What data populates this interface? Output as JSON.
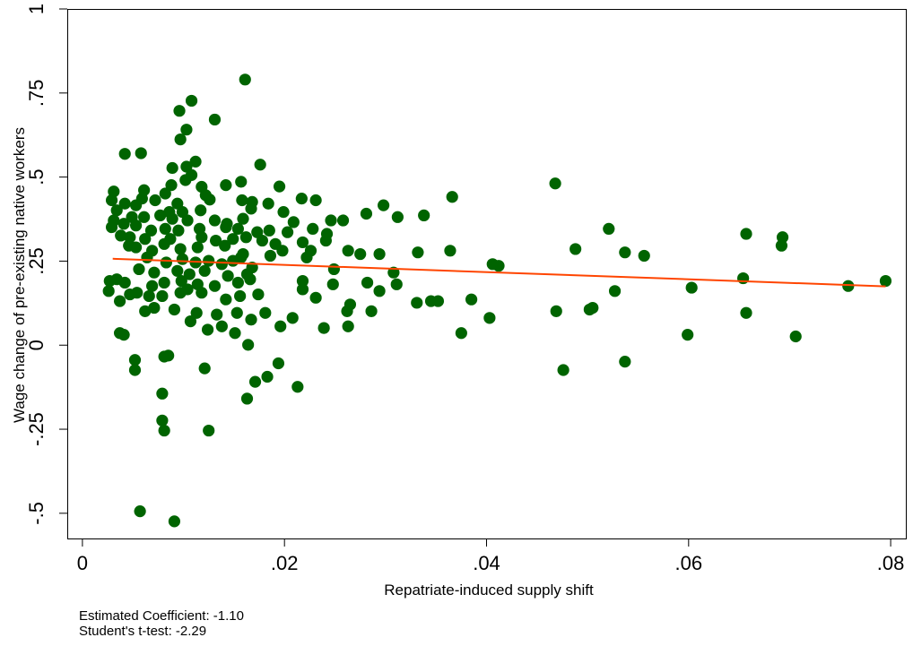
{
  "chart_data": {
    "type": "scatter",
    "title": "",
    "xlabel": "Repatriate-induced supply shift",
    "ylabel": "Wage change of pre-existing native workers",
    "xlim": [
      -0.0015,
      0.0815
    ],
    "ylim": [
      -0.575,
      1.0
    ],
    "xticks": [
      0,
      0.02,
      0.04,
      0.06,
      0.08
    ],
    "xtick_labels": [
      "0",
      ".02",
      ".04",
      ".06",
      ".08"
    ],
    "yticks": [
      -0.5,
      -0.25,
      0,
      0.25,
      0.5,
      0.75,
      1
    ],
    "ytick_labels": [
      "-.5",
      "-.25",
      "0",
      ".25",
      ".5",
      ".75",
      "1"
    ],
    "grid": false,
    "colors": {
      "points": "#006400",
      "fit_line": "#ff4500"
    },
    "fit_line": {
      "x": [
        0.003,
        0.0795
      ],
      "y": [
        0.257,
        0.175
      ]
    },
    "points": [
      [
        0.0161,
        0.79
      ],
      [
        0.0108,
        0.727
      ],
      [
        0.0096,
        0.697
      ],
      [
        0.0131,
        0.671
      ],
      [
        0.0103,
        0.641
      ],
      [
        0.0097,
        0.612
      ],
      [
        0.0042,
        0.569
      ],
      [
        0.0058,
        0.571
      ],
      [
        0.0112,
        0.546
      ],
      [
        0.0089,
        0.527
      ],
      [
        0.0103,
        0.531
      ],
      [
        0.0176,
        0.537
      ],
      [
        0.0108,
        0.506
      ],
      [
        0.0157,
        0.486
      ],
      [
        0.0102,
        0.491
      ],
      [
        0.0088,
        0.476
      ],
      [
        0.0118,
        0.471
      ],
      [
        0.0142,
        0.476
      ],
      [
        0.0195,
        0.472
      ],
      [
        0.0031,
        0.457
      ],
      [
        0.0061,
        0.461
      ],
      [
        0.0059,
        0.436
      ],
      [
        0.0072,
        0.431
      ],
      [
        0.0082,
        0.451
      ],
      [
        0.0029,
        0.431
      ],
      [
        0.0122,
        0.446
      ],
      [
        0.0126,
        0.433
      ],
      [
        0.0158,
        0.431
      ],
      [
        0.0168,
        0.426
      ],
      [
        0.0217,
        0.436
      ],
      [
        0.0231,
        0.431
      ],
      [
        0.0366,
        0.441
      ],
      [
        0.0053,
        0.416
      ],
      [
        0.0042,
        0.421
      ],
      [
        0.0094,
        0.421
      ],
      [
        0.0184,
        0.421
      ],
      [
        0.0298,
        0.416
      ],
      [
        0.0034,
        0.401
      ],
      [
        0.0086,
        0.396
      ],
      [
        0.0099,
        0.396
      ],
      [
        0.0117,
        0.401
      ],
      [
        0.0167,
        0.406
      ],
      [
        0.0199,
        0.396
      ],
      [
        0.0281,
        0.391
      ],
      [
        0.0468,
        0.481
      ],
      [
        0.0031,
        0.371
      ],
      [
        0.0061,
        0.381
      ],
      [
        0.0049,
        0.381
      ],
      [
        0.0077,
        0.386
      ],
      [
        0.0089,
        0.376
      ],
      [
        0.0104,
        0.371
      ],
      [
        0.0131,
        0.371
      ],
      [
        0.0143,
        0.361
      ],
      [
        0.0159,
        0.376
      ],
      [
        0.0209,
        0.366
      ],
      [
        0.0246,
        0.371
      ],
      [
        0.0258,
        0.371
      ],
      [
        0.0312,
        0.381
      ],
      [
        0.0338,
        0.386
      ],
      [
        0.0029,
        0.351
      ],
      [
        0.0041,
        0.361
      ],
      [
        0.0053,
        0.356
      ],
      [
        0.0068,
        0.341
      ],
      [
        0.0082,
        0.346
      ],
      [
        0.0095,
        0.341
      ],
      [
        0.0116,
        0.346
      ],
      [
        0.0142,
        0.351
      ],
      [
        0.0154,
        0.346
      ],
      [
        0.0173,
        0.336
      ],
      [
        0.0185,
        0.341
      ],
      [
        0.0203,
        0.336
      ],
      [
        0.0228,
        0.346
      ],
      [
        0.0242,
        0.331
      ],
      [
        0.0038,
        0.326
      ],
      [
        0.0047,
        0.321
      ],
      [
        0.0062,
        0.316
      ],
      [
        0.0087,
        0.316
      ],
      [
        0.0118,
        0.321
      ],
      [
        0.0132,
        0.311
      ],
      [
        0.0149,
        0.316
      ],
      [
        0.0162,
        0.321
      ],
      [
        0.0178,
        0.311
      ],
      [
        0.0191,
        0.301
      ],
      [
        0.0218,
        0.306
      ],
      [
        0.0241,
        0.311
      ],
      [
        0.0263,
        0.281
      ],
      [
        0.0275,
        0.271
      ],
      [
        0.0046,
        0.296
      ],
      [
        0.0053,
        0.291
      ],
      [
        0.0069,
        0.281
      ],
      [
        0.0081,
        0.301
      ],
      [
        0.0097,
        0.286
      ],
      [
        0.0114,
        0.291
      ],
      [
        0.0141,
        0.296
      ],
      [
        0.0159,
        0.271
      ],
      [
        0.0186,
        0.266
      ],
      [
        0.0198,
        0.281
      ],
      [
        0.0226,
        0.281
      ],
      [
        0.0294,
        0.271
      ],
      [
        0.0332,
        0.276
      ],
      [
        0.0364,
        0.281
      ],
      [
        0.0406,
        0.241
      ],
      [
        0.0412,
        0.236
      ],
      [
        0.0488,
        0.286
      ],
      [
        0.0521,
        0.346
      ],
      [
        0.0537,
        0.276
      ],
      [
        0.0556,
        0.266
      ],
      [
        0.0657,
        0.331
      ],
      [
        0.0693,
        0.321
      ],
      [
        0.0692,
        0.296
      ],
      [
        0.0064,
        0.261
      ],
      [
        0.0083,
        0.246
      ],
      [
        0.0099,
        0.256
      ],
      [
        0.0112,
        0.246
      ],
      [
        0.0125,
        0.251
      ],
      [
        0.0138,
        0.241
      ],
      [
        0.0149,
        0.251
      ],
      [
        0.0157,
        0.261
      ],
      [
        0.0168,
        0.231
      ],
      [
        0.0222,
        0.261
      ],
      [
        0.0249,
        0.226
      ],
      [
        0.0308,
        0.216
      ],
      [
        0.0056,
        0.226
      ],
      [
        0.0071,
        0.216
      ],
      [
        0.0094,
        0.221
      ],
      [
        0.0106,
        0.211
      ],
      [
        0.0121,
        0.221
      ],
      [
        0.0144,
        0.206
      ],
      [
        0.0163,
        0.211
      ],
      [
        0.0027,
        0.191
      ],
      [
        0.0034,
        0.196
      ],
      [
        0.0042,
        0.186
      ],
      [
        0.0069,
        0.176
      ],
      [
        0.0081,
        0.186
      ],
      [
        0.0098,
        0.191
      ],
      [
        0.0114,
        0.181
      ],
      [
        0.0131,
        0.176
      ],
      [
        0.0154,
        0.186
      ],
      [
        0.0166,
        0.196
      ],
      [
        0.0218,
        0.191
      ],
      [
        0.0248,
        0.181
      ],
      [
        0.0282,
        0.186
      ],
      [
        0.0311,
        0.181
      ],
      [
        0.0026,
        0.161
      ],
      [
        0.0047,
        0.151
      ],
      [
        0.0054,
        0.156
      ],
      [
        0.0066,
        0.146
      ],
      [
        0.0079,
        0.146
      ],
      [
        0.0097,
        0.156
      ],
      [
        0.0104,
        0.166
      ],
      [
        0.0118,
        0.156
      ],
      [
        0.0142,
        0.136
      ],
      [
        0.0156,
        0.146
      ],
      [
        0.0174,
        0.151
      ],
      [
        0.0218,
        0.166
      ],
      [
        0.0231,
        0.141
      ],
      [
        0.0265,
        0.121
      ],
      [
        0.0294,
        0.161
      ],
      [
        0.0331,
        0.126
      ],
      [
        0.0345,
        0.131
      ],
      [
        0.0352,
        0.131
      ],
      [
        0.0385,
        0.136
      ],
      [
        0.0469,
        0.101
      ],
      [
        0.0502,
        0.106
      ],
      [
        0.0505,
        0.111
      ],
      [
        0.0527,
        0.161
      ],
      [
        0.0603,
        0.171
      ],
      [
        0.0654,
        0.199
      ],
      [
        0.0657,
        0.096
      ],
      [
        0.0758,
        0.176
      ],
      [
        0.0795,
        0.191
      ],
      [
        0.0037,
        0.131
      ],
      [
        0.0062,
        0.101
      ],
      [
        0.0071,
        0.111
      ],
      [
        0.0091,
        0.106
      ],
      [
        0.0113,
        0.096
      ],
      [
        0.0133,
        0.091
      ],
      [
        0.0153,
        0.096
      ],
      [
        0.0167,
        0.076
      ],
      [
        0.0181,
        0.096
      ],
      [
        0.0208,
        0.081
      ],
      [
        0.0262,
        0.101
      ],
      [
        0.0286,
        0.101
      ],
      [
        0.0037,
        0.036
      ],
      [
        0.0041,
        0.031
      ],
      [
        0.0107,
        0.071
      ],
      [
        0.0124,
        0.046
      ],
      [
        0.0138,
        0.056
      ],
      [
        0.0151,
        0.036
      ],
      [
        0.0164,
        0.001
      ],
      [
        0.0196,
        0.056
      ],
      [
        0.0239,
        0.051
      ],
      [
        0.0263,
        0.056
      ],
      [
        0.0375,
        0.036
      ],
      [
        0.0403,
        0.081
      ],
      [
        0.0599,
        0.031
      ],
      [
        0.0706,
        0.026
      ],
      [
        0.0052,
        -0.044
      ],
      [
        0.0052,
        -0.074
      ],
      [
        0.0081,
        -0.034
      ],
      [
        0.0085,
        -0.031
      ],
      [
        0.0121,
        -0.069
      ],
      [
        0.0171,
        -0.109
      ],
      [
        0.0183,
        -0.094
      ],
      [
        0.0194,
        -0.054
      ],
      [
        0.0213,
        -0.124
      ],
      [
        0.0163,
        -0.159
      ],
      [
        0.0476,
        -0.074
      ],
      [
        0.0537,
        -0.049
      ],
      [
        0.0079,
        -0.144
      ],
      [
        0.0079,
        -0.224
      ],
      [
        0.0081,
        -0.254
      ],
      [
        0.0125,
        -0.254
      ],
      [
        0.0057,
        -0.494
      ],
      [
        0.0091,
        -0.524
      ]
    ]
  },
  "notes": {
    "coefficient": "Estimated Coefficient: -1.10",
    "ttest": "Student's t-test: -2.29"
  }
}
